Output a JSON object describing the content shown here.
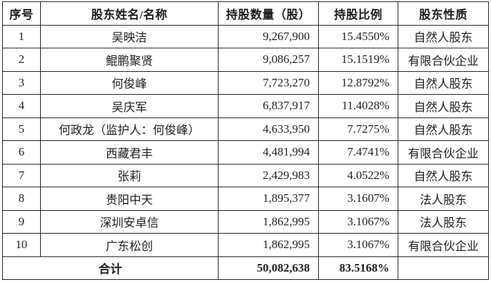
{
  "table": {
    "headers": [
      "序号",
      "股东姓名/名称",
      "持股数量（股）",
      "持股比例",
      "股东性质"
    ],
    "rows": [
      {
        "no": "1",
        "name": "吴映洁",
        "shares": "9,267,900",
        "ratio": "15.4550%",
        "nature": "自然人股东"
      },
      {
        "no": "2",
        "name": "鲲鹏聚贤",
        "shares": "9,086,257",
        "ratio": "15.1519%",
        "nature": "有限合伙企业"
      },
      {
        "no": "3",
        "name": "何俊峰",
        "shares": "7,723,270",
        "ratio": "12.8792%",
        "nature": "自然人股东"
      },
      {
        "no": "4",
        "name": "吴庆军",
        "shares": "6,837,917",
        "ratio": "11.4028%",
        "nature": "自然人股东"
      },
      {
        "no": "5",
        "name": "何政龙（监护人：何俊峰）",
        "shares": "4,633,950",
        "ratio": "7.7275%",
        "nature": "自然人股东"
      },
      {
        "no": "6",
        "name": "西藏君丰",
        "shares": "4,481,994",
        "ratio": "7.4741%",
        "nature": "有限合伙企业"
      },
      {
        "no": "7",
        "name": "张莉",
        "shares": "2,429,983",
        "ratio": "4.0522%",
        "nature": "自然人股东"
      },
      {
        "no": "8",
        "name": "贵阳中天",
        "shares": "1,895,377",
        "ratio": "3.1607%",
        "nature": "法人股东"
      },
      {
        "no": "9",
        "name": "深圳安卓信",
        "shares": "1,862,995",
        "ratio": "3.1067%",
        "nature": "法人股东"
      },
      {
        "no": "10",
        "name": "广东松创",
        "shares": "1,862,995",
        "ratio": "3.1067%",
        "nature": "有限合伙企业"
      }
    ],
    "total": {
      "label": "合计",
      "shares": "50,082,638",
      "ratio": "83.5168%",
      "nature": ""
    }
  }
}
